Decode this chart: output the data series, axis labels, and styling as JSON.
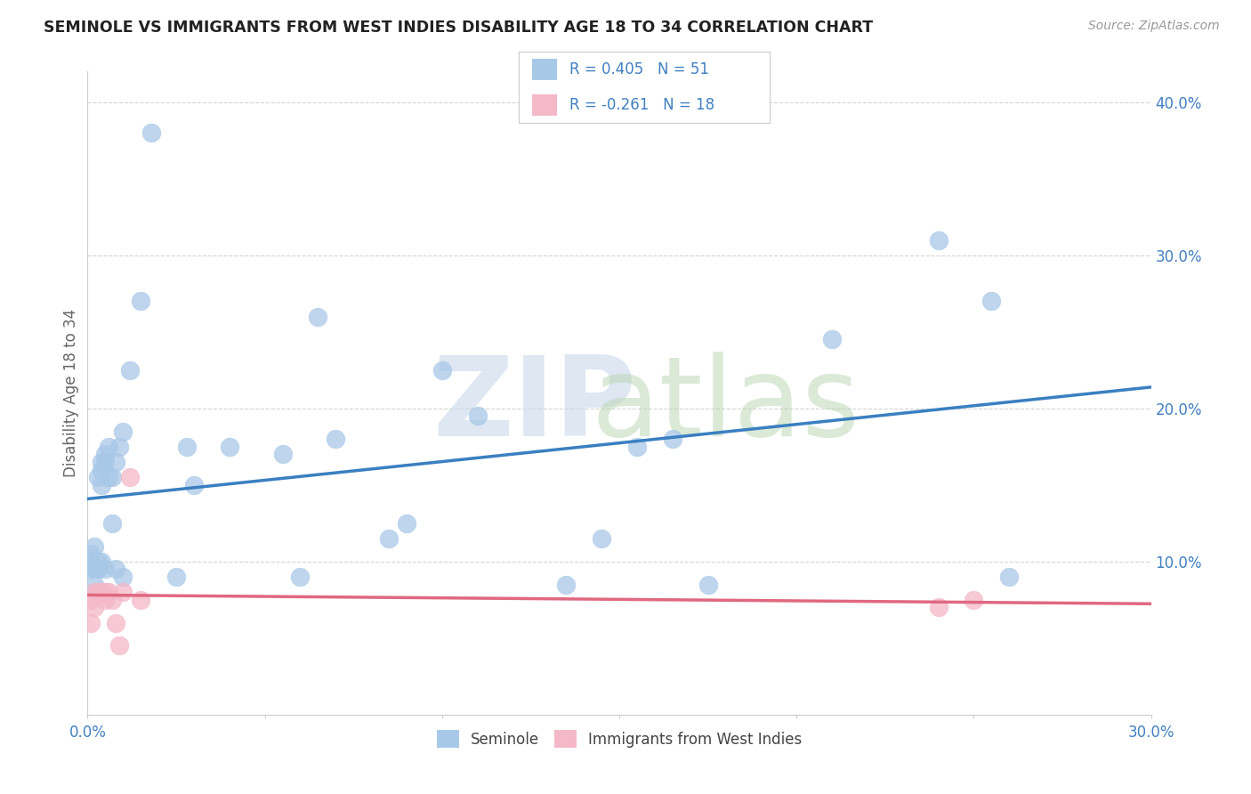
{
  "title": "SEMINOLE VS IMMIGRANTS FROM WEST INDIES DISABILITY AGE 18 TO 34 CORRELATION CHART",
  "source": "Source: ZipAtlas.com",
  "ylabel": "Disability Age 18 to 34",
  "xlim": [
    0.0,
    0.3
  ],
  "ylim": [
    0.0,
    0.42
  ],
  "blue_color": "#a8c8e8",
  "pink_color": "#f4b8c8",
  "blue_line_color": "#3a7fc1",
  "pink_line_color": "#e06880",
  "legend_R1": "R = 0.405",
  "legend_N1": "N = 51",
  "legend_R2": "R = -0.261",
  "legend_N2": "N = 18",
  "seminole_x": [
    0.001,
    0.001,
    0.001,
    0.002,
    0.002,
    0.002,
    0.002,
    0.003,
    0.003,
    0.003,
    0.003,
    0.004,
    0.004,
    0.004,
    0.004,
    0.005,
    0.005,
    0.005,
    0.006,
    0.006,
    0.007,
    0.007,
    0.008,
    0.008,
    0.009,
    0.01,
    0.01,
    0.012,
    0.015,
    0.018,
    0.025,
    0.028,
    0.03,
    0.04,
    0.055,
    0.06,
    0.065,
    0.07,
    0.085,
    0.09,
    0.1,
    0.11,
    0.135,
    0.145,
    0.155,
    0.165,
    0.175,
    0.21,
    0.24,
    0.255,
    0.26
  ],
  "seminole_y": [
    0.095,
    0.105,
    0.1,
    0.095,
    0.095,
    0.085,
    0.11,
    0.095,
    0.1,
    0.095,
    0.155,
    0.165,
    0.16,
    0.15,
    0.1,
    0.17,
    0.165,
    0.095,
    0.175,
    0.155,
    0.155,
    0.125,
    0.165,
    0.095,
    0.175,
    0.185,
    0.09,
    0.225,
    0.27,
    0.38,
    0.09,
    0.175,
    0.15,
    0.175,
    0.17,
    0.09,
    0.26,
    0.18,
    0.115,
    0.125,
    0.225,
    0.195,
    0.085,
    0.115,
    0.175,
    0.18,
    0.085,
    0.245,
    0.31,
    0.27,
    0.09
  ],
  "immigrants_x": [
    0.001,
    0.001,
    0.002,
    0.002,
    0.003,
    0.003,
    0.004,
    0.005,
    0.005,
    0.006,
    0.007,
    0.008,
    0.009,
    0.01,
    0.012,
    0.015,
    0.24,
    0.25
  ],
  "immigrants_y": [
    0.06,
    0.075,
    0.07,
    0.08,
    0.08,
    0.08,
    0.08,
    0.075,
    0.08,
    0.08,
    0.075,
    0.06,
    0.045,
    0.08,
    0.155,
    0.075,
    0.07,
    0.075
  ],
  "watermark_zip_color": "#c8d8ea",
  "watermark_atlas_color": "#b8d4b0",
  "grid_color": "#d0d0d0",
  "tick_label_color": "#4080c0",
  "spine_color": "#cccccc"
}
